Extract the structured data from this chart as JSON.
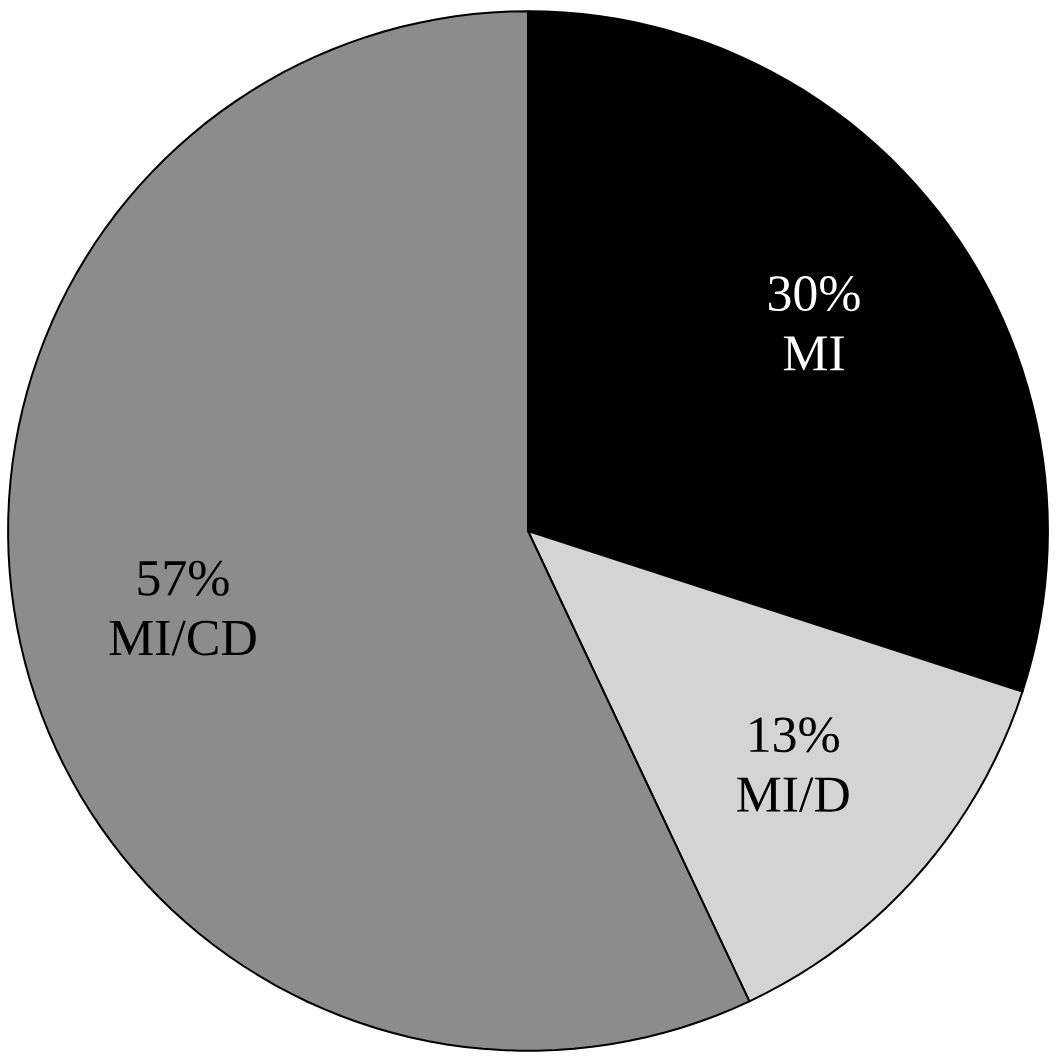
{
  "chart_data": {
    "type": "pie",
    "categories": [
      "MI",
      "MI/D",
      "MI/CD"
    ],
    "values": [
      30,
      13,
      57
    ],
    "value_labels": [
      "30%",
      "13%",
      "57%"
    ],
    "colors": [
      "#000000",
      "#d4d4d4",
      "#8c8c8c"
    ]
  }
}
